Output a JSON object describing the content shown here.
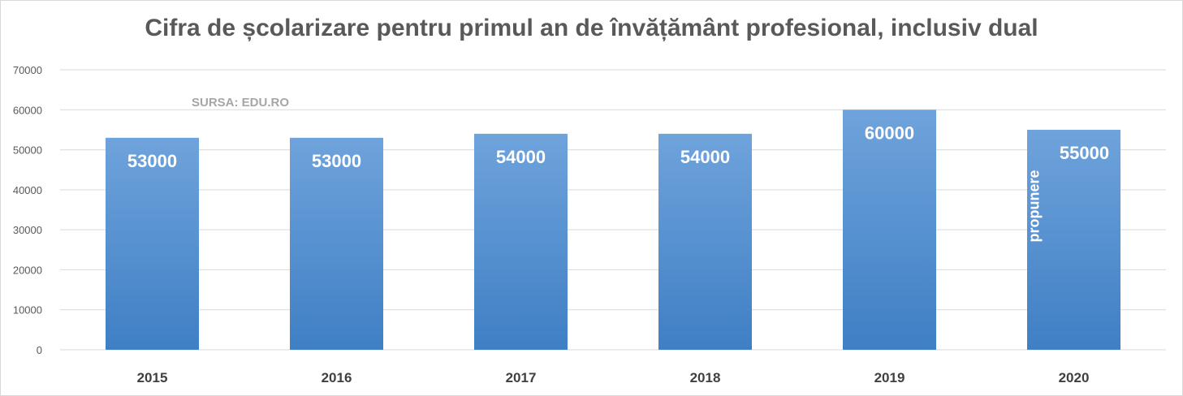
{
  "chart_data": {
    "type": "bar",
    "title": "Cifra de școlarizare pentru primul an de învățământ profesional, inclusiv dual",
    "source_note": "SURSA: EDU.RO",
    "categories": [
      "2015",
      "2016",
      "2017",
      "2018",
      "2019",
      "2020"
    ],
    "values": [
      53000,
      53000,
      54000,
      54000,
      60000,
      55000
    ],
    "data_labels": [
      "53000",
      "53000",
      "54000",
      "54000",
      "60000",
      "55000"
    ],
    "annotations": [
      {
        "category": "2020",
        "text": "propunere"
      }
    ],
    "y_ticks": [
      "0",
      "10000",
      "20000",
      "30000",
      "40000",
      "50000",
      "60000",
      "70000"
    ],
    "ylim": [
      0,
      70000
    ],
    "grid": true,
    "legend": "none",
    "xlabel": "",
    "ylabel": "",
    "colors": {
      "bar_top": "#6fa3dc",
      "bar_bottom": "#3f7fc4",
      "grid": "#d9d9d9"
    }
  }
}
